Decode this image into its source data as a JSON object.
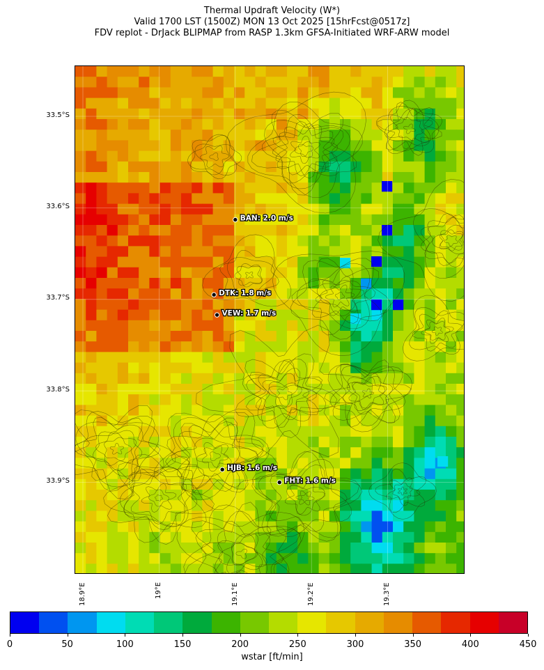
{
  "title": {
    "line1": "Thermal Updraft Velocity (W*)",
    "line2": "Valid 1700 LST (1500Z) MON 13 Oct 2025 [15hrFcst@0517z]",
    "line3": "FDV replot - DrJack BLIPMAP from RASP 1.3km GFSA-Initiated WRF-ARW model"
  },
  "axes": {
    "lat_ticks": [
      "33.5°S",
      "33.6°S",
      "33.7°S",
      "33.8°S",
      "33.9°S"
    ],
    "lon_ticks": [
      "18.9°E",
      "19°E",
      "19.1°E",
      "19.2°E",
      "19.3°E"
    ]
  },
  "stations": [
    {
      "code": "BAN",
      "label": "BAN: 2.0 m/s",
      "value": 2.0,
      "unit": "m/s",
      "lat": -33.613,
      "lon": 19.1
    },
    {
      "code": "DTK",
      "label": "DTK: 1.8 m/s",
      "value": 1.8,
      "unit": "m/s",
      "lat": -33.695,
      "lon": 19.072
    },
    {
      "code": "VEW",
      "label": "VEW: 1.7 m/s",
      "value": 1.7,
      "unit": "m/s",
      "lat": -33.717,
      "lon": 19.076
    },
    {
      "code": "HJB",
      "label": "HJB: 1.6 m/s",
      "value": 1.6,
      "unit": "m/s",
      "lat": -33.886,
      "lon": 19.083
    },
    {
      "code": "FHT",
      "label": "FHT: 1.6 m/s",
      "value": 1.6,
      "unit": "m/s",
      "lat": -33.9,
      "lon": 19.158
    }
  ],
  "colorbar": {
    "label": "wstar [ft/min]",
    "tick_labels": [
      "0",
      "50",
      "100",
      "150",
      "200",
      "250",
      "300",
      "350",
      "400",
      "450"
    ],
    "min": 0,
    "max": 450,
    "colors": [
      "#0000f0",
      "#0050f0",
      "#0096f0",
      "#00dcf0",
      "#00dcb4",
      "#00c878",
      "#00aa3c",
      "#3cb400",
      "#78c800",
      "#b4dc00",
      "#e6e600",
      "#e6c800",
      "#e6aa00",
      "#e68c00",
      "#e65a00",
      "#e62800",
      "#e60000",
      "#c80028"
    ]
  }
}
